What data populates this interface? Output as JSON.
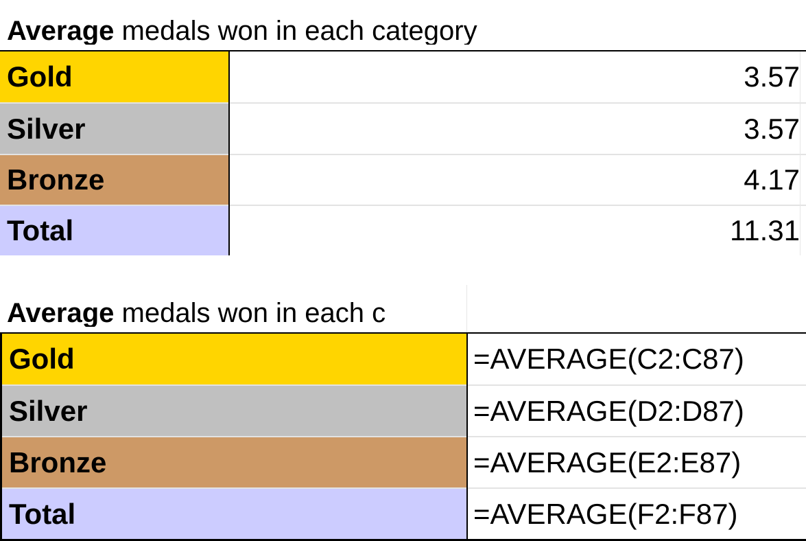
{
  "colors": {
    "gold": "#FFD500",
    "silver": "#C0C0C0",
    "bronze": "#CD9966",
    "total": "#CCCCFF"
  },
  "values_view": {
    "title_bold": "Average",
    "title_rest": " medals won in each category",
    "rows": [
      {
        "label": "Gold",
        "value": "3.57",
        "color": "#FFD500"
      },
      {
        "label": "Silver",
        "value": "3.57",
        "color": "#C0C0C0"
      },
      {
        "label": "Bronze",
        "value": "4.17",
        "color": "#CD9966"
      },
      {
        "label": "Total",
        "value": "11.31",
        "color": "#CCCCFF"
      }
    ]
  },
  "formulas_view": {
    "title_bold": "Average",
    "title_rest": " medals won in each c",
    "rows": [
      {
        "label": "Gold",
        "formula": "=AVERAGE(C2:C87)",
        "color": "#FFD500"
      },
      {
        "label": "Silver",
        "formula": "=AVERAGE(D2:D87)",
        "color": "#C0C0C0"
      },
      {
        "label": "Bronze",
        "formula": "=AVERAGE(E2:E87)",
        "color": "#CD9966"
      },
      {
        "label": "Total",
        "formula": "=AVERAGE(F2:F87)",
        "color": "#CCCCFF"
      }
    ]
  }
}
